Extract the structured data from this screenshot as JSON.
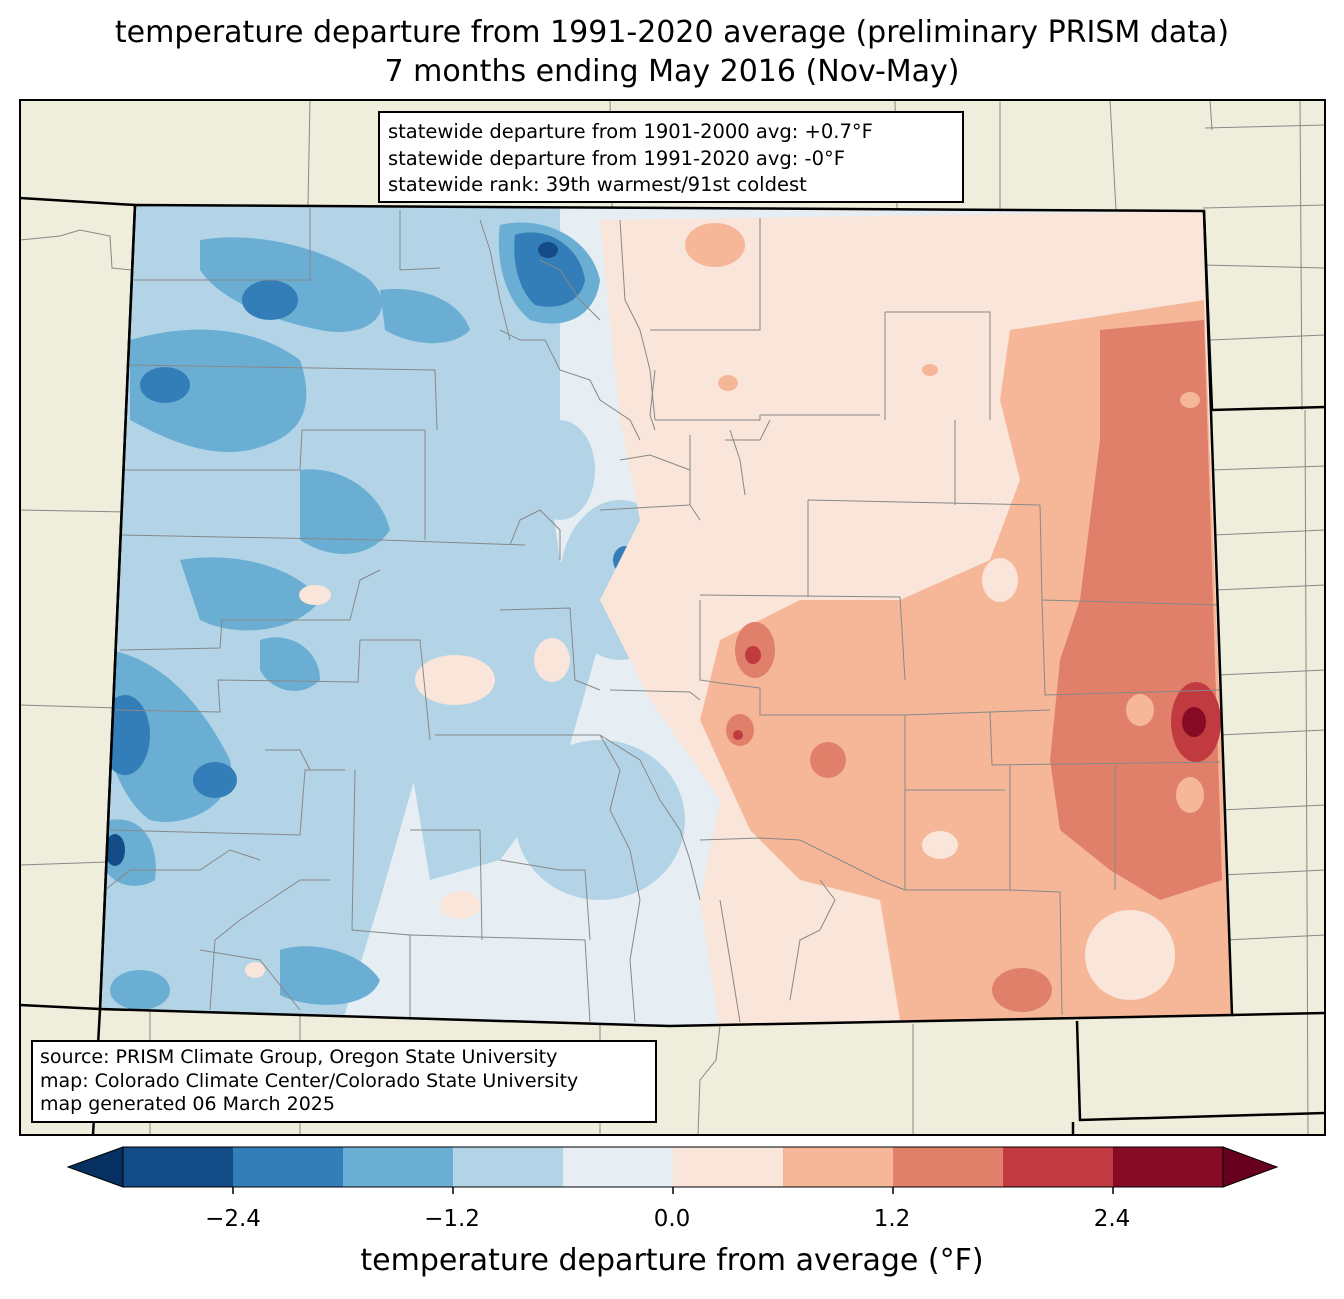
{
  "title": {
    "line1": "temperature departure from 1991-2020 average (preliminary PRISM data)",
    "line2": "7 months ending May 2016 (Nov-May)"
  },
  "stats": {
    "line1": "statewide departure from 1901-2000 avg: +0.7°F",
    "line2": "statewide departure from 1991-2020 avg: -0°F",
    "line3": "statewide rank: 39th warmest/91st coldest"
  },
  "source": {
    "line1": "source: PRISM Climate Group, Oregon State University",
    "line2": "map: Colorado Climate Center/Colorado State University",
    "line3": "map generated 06 March 2025"
  },
  "colorbar": {
    "label": "temperature departure from average (°F)",
    "ticks": [
      "−2.4",
      "−1.2",
      "0.0",
      "1.2",
      "2.4"
    ],
    "bins": [
      {
        "range": "< -3.0",
        "color": "#053061"
      },
      {
        "range": "-3.0 to -2.4",
        "color": "#134c87"
      },
      {
        "range": "-2.4 to -1.8",
        "color": "#337eb8"
      },
      {
        "range": "-1.8 to -1.2",
        "color": "#6aaed3"
      },
      {
        "range": "-1.2 to -0.6",
        "color": "#b2d4e6"
      },
      {
        "range": "-0.6 to 0.0",
        "color": "#e6eef4"
      },
      {
        "range": "0.0 to 0.6",
        "color": "#f9e5da"
      },
      {
        "range": "0.6 to 1.2",
        "color": "#f6b799"
      },
      {
        "range": "1.2 to 1.8",
        "color": "#e0806a"
      },
      {
        "range": "1.8 to 2.4",
        "color": "#c03a3f"
      },
      {
        "range": "2.4 to 3.0",
        "color": "#870b25"
      },
      {
        "range": "> 3.0",
        "color": "#67001f"
      }
    ]
  },
  "map": {
    "background_color": "#efeddc",
    "state": "Colorado"
  }
}
